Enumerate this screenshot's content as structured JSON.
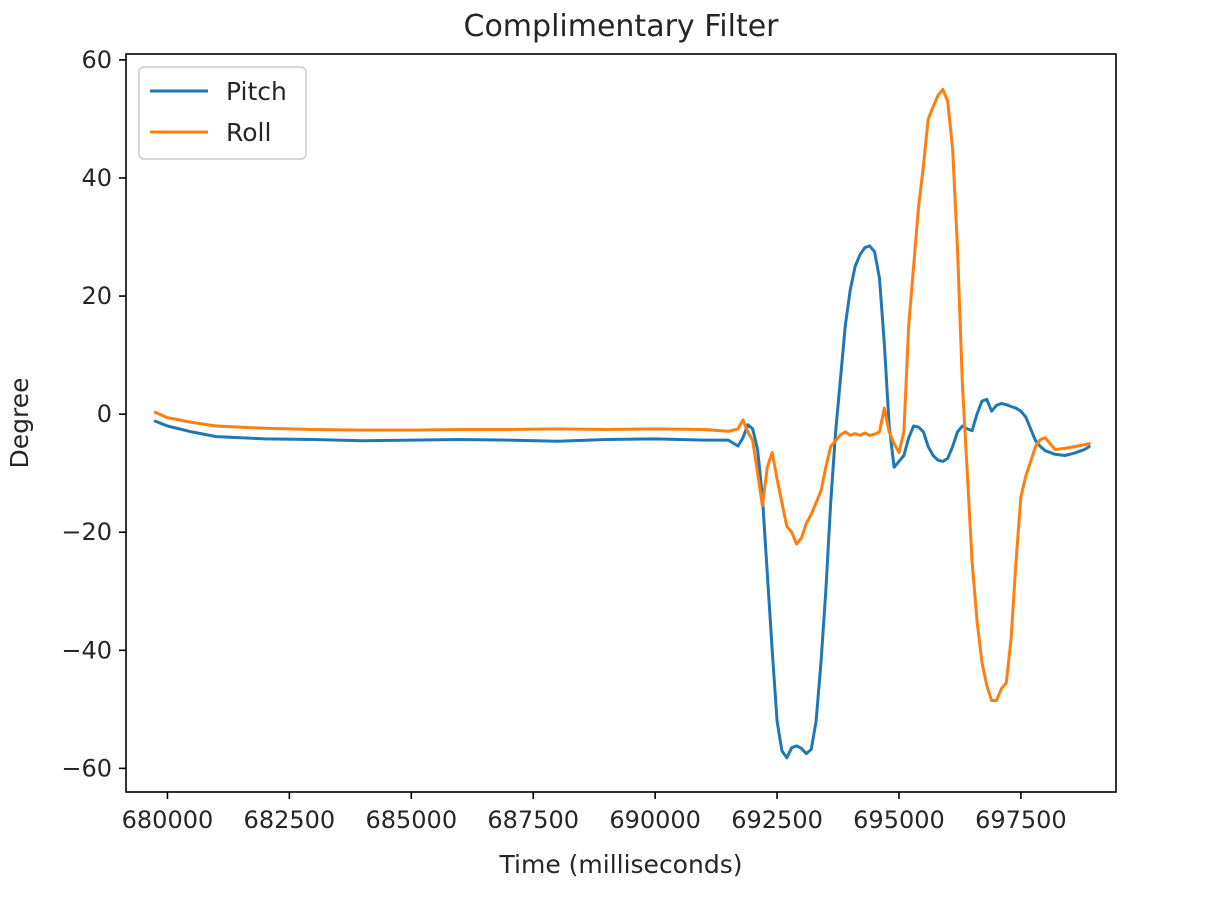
{
  "chart_data": {
    "type": "line",
    "title": "Complimentary Filter",
    "xlabel": "Time (milliseconds)",
    "ylabel": "Degree",
    "xlim": [
      679150,
      699450
    ],
    "ylim": [
      -64,
      61
    ],
    "xticks": [
      680000,
      682500,
      685000,
      687500,
      690000,
      692500,
      695000,
      697500
    ],
    "xtick_labels": [
      "680000",
      "682500",
      "685000",
      "687500",
      "690000",
      "692500",
      "695000",
      "697500"
    ],
    "yticks": [
      -60,
      -40,
      -20,
      0,
      20,
      40,
      60
    ],
    "ytick_labels": [
      "−60",
      "−40",
      "−20",
      "0",
      "20",
      "40",
      "60"
    ],
    "legend": "top-left",
    "grid": false,
    "series": [
      {
        "name": "Pitch",
        "color": "#1f77b4",
        "x": [
          679750,
          680000,
          680500,
          681000,
          682000,
          683000,
          684000,
          685000,
          686000,
          687000,
          688000,
          689000,
          690000,
          691000,
          691500,
          691700,
          691800,
          691900,
          692000,
          692100,
          692200,
          692300,
          692400,
          692500,
          692600,
          692700,
          692800,
          692900,
          693000,
          693100,
          693200,
          693300,
          693400,
          693500,
          693600,
          693700,
          693800,
          693900,
          694000,
          694100,
          694200,
          694300,
          694400,
          694500,
          694600,
          694700,
          694800,
          694900,
          695000,
          695100,
          695200,
          695300,
          695400,
          695500,
          695600,
          695700,
          695800,
          695900,
          696000,
          696100,
          696200,
          696300,
          696400,
          696500,
          696600,
          696700,
          696800,
          696900,
          697000,
          697100,
          697200,
          697300,
          697400,
          697500,
          697600,
          697700,
          697800,
          697900,
          698000,
          698200,
          698400,
          698600,
          698800,
          698900
        ],
        "y": [
          -1.2,
          -2.0,
          -3.0,
          -3.8,
          -4.2,
          -4.3,
          -4.5,
          -4.4,
          -4.3,
          -4.4,
          -4.6,
          -4.3,
          -4.2,
          -4.4,
          -4.4,
          -5.4,
          -4.0,
          -1.8,
          -2.5,
          -6.0,
          -14.0,
          -27.0,
          -40.0,
          -52.0,
          -57.0,
          -58.2,
          -56.5,
          -56.2,
          -56.6,
          -57.5,
          -56.8,
          -52.0,
          -42.0,
          -30.0,
          -15.0,
          -3.0,
          6.0,
          15.0,
          21.0,
          25.0,
          27.0,
          28.2,
          28.5,
          27.5,
          23.0,
          12.0,
          -2.0,
          -9.0,
          -8.0,
          -7.0,
          -4.0,
          -2.0,
          -2.2,
          -3.0,
          -5.5,
          -7.0,
          -7.8,
          -8.0,
          -7.5,
          -5.5,
          -3.0,
          -2.0,
          -2.5,
          -2.8,
          0.0,
          2.2,
          2.5,
          0.5,
          1.5,
          1.8,
          1.6,
          1.3,
          1.0,
          0.5,
          -0.5,
          -2.5,
          -4.5,
          -5.5,
          -6.2,
          -6.8,
          -7.0,
          -6.6,
          -6.0,
          -5.5
        ]
      },
      {
        "name": "Roll",
        "color": "#ff7f0e",
        "x": [
          679750,
          680000,
          680500,
          681000,
          682000,
          683000,
          684000,
          685000,
          686000,
          687000,
          688000,
          689000,
          690000,
          691000,
          691500,
          691700,
          691800,
          691900,
          692000,
          692100,
          692200,
          692300,
          692400,
          692500,
          692600,
          692700,
          692800,
          692900,
          693000,
          693100,
          693200,
          693300,
          693400,
          693500,
          693600,
          693700,
          693800,
          693900,
          694000,
          694100,
          694200,
          694300,
          694400,
          694500,
          694600,
          694700,
          694800,
          694900,
          695000,
          695100,
          695200,
          695300,
          695400,
          695500,
          695600,
          695700,
          695800,
          695900,
          696000,
          696100,
          696200,
          696300,
          696400,
          696500,
          696600,
          696700,
          696800,
          696900,
          697000,
          697100,
          697200,
          697300,
          697400,
          697500,
          697600,
          697700,
          697800,
          697900,
          698000,
          698200,
          698400,
          698600,
          698800,
          698900
        ],
        "y": [
          0.3,
          -0.6,
          -1.4,
          -2.0,
          -2.4,
          -2.6,
          -2.7,
          -2.7,
          -2.6,
          -2.6,
          -2.5,
          -2.6,
          -2.5,
          -2.6,
          -2.9,
          -2.5,
          -1.0,
          -3.0,
          -4.5,
          -10.0,
          -15.5,
          -9.0,
          -6.5,
          -11.0,
          -15.0,
          -19.0,
          -20.0,
          -22.0,
          -21.0,
          -18.5,
          -17.0,
          -15.0,
          -13.0,
          -9.0,
          -5.5,
          -4.5,
          -3.5,
          -3.0,
          -3.6,
          -3.3,
          -3.6,
          -3.2,
          -3.6,
          -3.4,
          -3.0,
          1.0,
          -3.0,
          -5.0,
          -6.5,
          -3.0,
          15.0,
          25.0,
          35.0,
          42.0,
          50.0,
          52.0,
          54.0,
          55.0,
          53.0,
          45.0,
          28.0,
          5.0,
          -10.0,
          -25.0,
          -35.0,
          -42.0,
          -46.0,
          -48.5,
          -48.5,
          -46.5,
          -45.5,
          -38.0,
          -25.0,
          -14.0,
          -10.5,
          -8.0,
          -5.5,
          -4.3,
          -4.0,
          -6.0,
          -5.8,
          -5.5,
          -5.2,
          -5.0
        ]
      }
    ]
  }
}
